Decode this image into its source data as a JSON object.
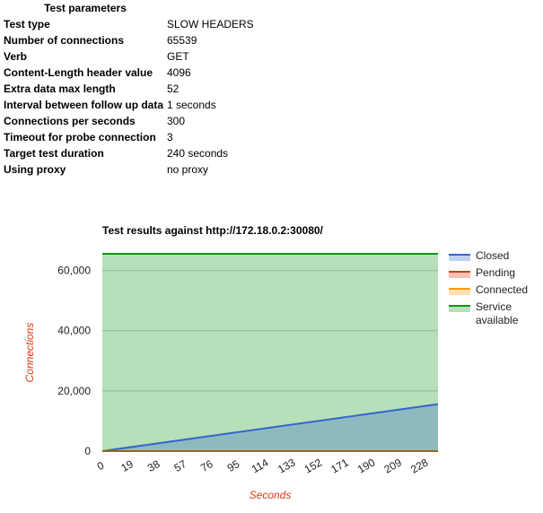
{
  "params_title": "Test parameters",
  "params": [
    {
      "key": "Test type",
      "value": "SLOW HEADERS"
    },
    {
      "key": "Number of connections",
      "value": "65539"
    },
    {
      "key": "Verb",
      "value": "GET"
    },
    {
      "key": "Content-Length header value",
      "value": "4096"
    },
    {
      "key": "Extra data max length",
      "value": "52"
    },
    {
      "key": "Interval between follow up data",
      "value": "1 seconds"
    },
    {
      "key": "Connections per seconds",
      "value": "300"
    },
    {
      "key": "Timeout for probe connection",
      "value": "3"
    },
    {
      "key": "Target test duration",
      "value": "240 seconds"
    },
    {
      "key": "Using proxy",
      "value": "no proxy"
    }
  ],
  "chart_data": {
    "type": "area",
    "title": "Test results against http://172.18.0.2:30080/",
    "xlabel": "Seconds",
    "ylabel": "Connections",
    "xlim": [
      0,
      240
    ],
    "ylim": [
      0,
      65539
    ],
    "x_ticks": [
      0,
      19,
      38,
      57,
      76,
      95,
      114,
      133,
      152,
      171,
      190,
      209,
      228
    ],
    "y_ticks": [
      0,
      20000,
      40000,
      60000
    ],
    "y_tick_labels": [
      "0",
      "20,000",
      "40,000",
      "60,000"
    ],
    "grid": true,
    "legend_position": "right",
    "series": [
      {
        "name": "Closed",
        "color": "#3366cc",
        "x": [
          0,
          240
        ],
        "y": [
          0,
          15600
        ]
      },
      {
        "name": "Pending",
        "color": "#dc3912",
        "x": [
          0,
          240
        ],
        "y": [
          0,
          0
        ]
      },
      {
        "name": "Connected",
        "color": "#ff9900",
        "x": [
          0,
          240
        ],
        "y": [
          0,
          0
        ]
      },
      {
        "name": "Service available",
        "color": "#109618",
        "x": [
          0,
          240
        ],
        "y": [
          65539,
          65539
        ]
      }
    ]
  }
}
